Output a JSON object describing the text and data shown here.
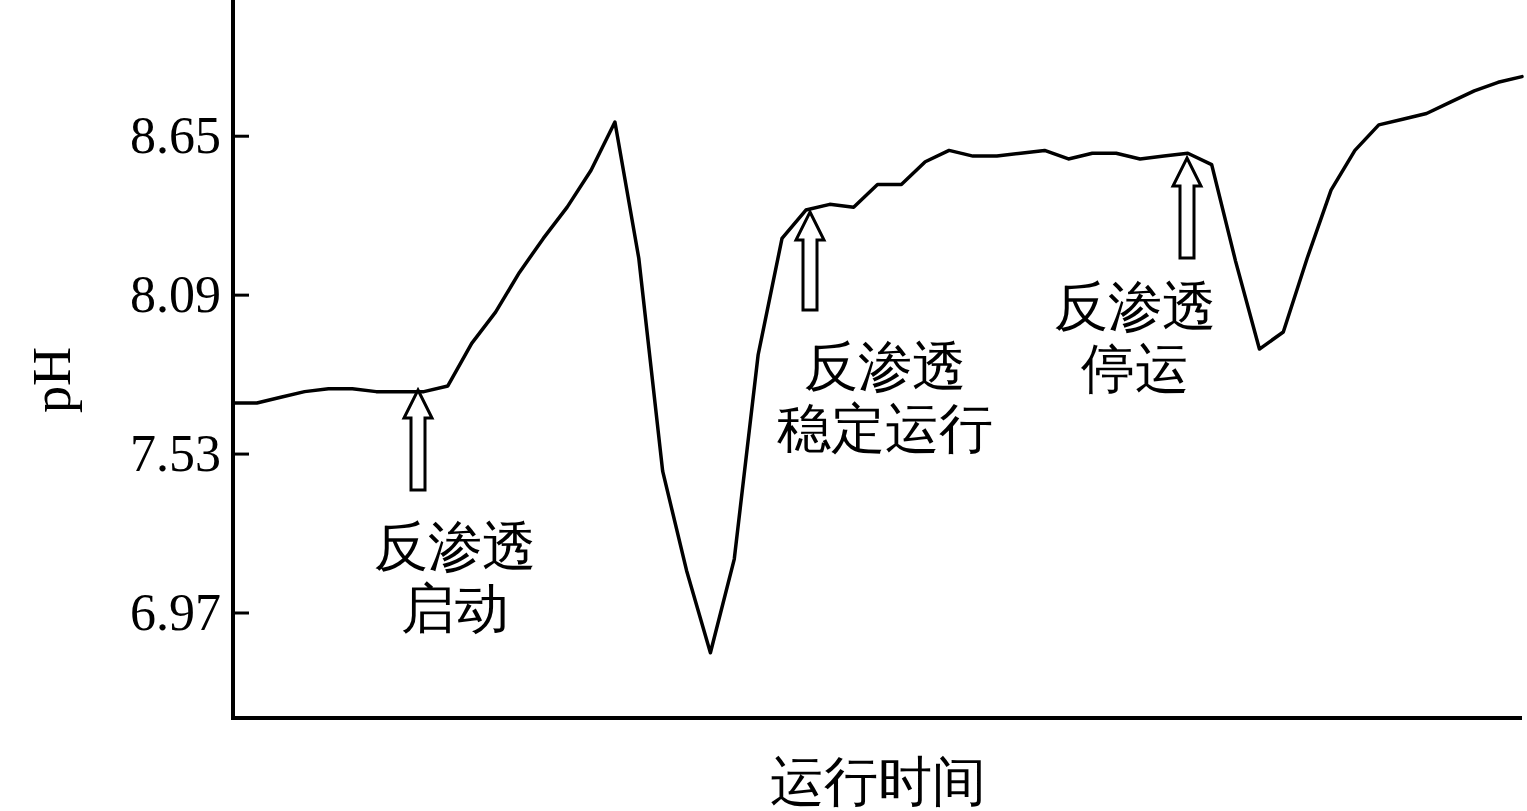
{
  "chart_data": {
    "type": "line",
    "xlabel": "运行时间",
    "ylabel": "pH",
    "ylim": [
      6.6,
      9.13
    ],
    "yticks": [
      6.97,
      7.53,
      8.09,
      8.65
    ],
    "color": "#000000",
    "categories": [
      null,
      null,
      null,
      null,
      null,
      null,
      null,
      null,
      null,
      null,
      null,
      null,
      null,
      null,
      null,
      null,
      null,
      null,
      null,
      null,
      null,
      null,
      null,
      null,
      null,
      null,
      null,
      null,
      null,
      null,
      null,
      null,
      null,
      null,
      null,
      null,
      null,
      null,
      null,
      null,
      null,
      null,
      null,
      null,
      null,
      null,
      null,
      null,
      null,
      null,
      null,
      null,
      null,
      null,
      null
    ],
    "values": [
      7.71,
      7.71,
      7.73,
      7.75,
      7.76,
      7.76,
      7.75,
      7.75,
      7.75,
      7.77,
      7.92,
      8.03,
      8.17,
      8.29,
      8.4,
      8.53,
      8.7,
      8.22,
      7.47,
      7.12,
      6.83,
      7.16,
      7.88,
      8.29,
      8.39,
      8.41,
      8.4,
      8.48,
      8.48,
      8.56,
      8.6,
      8.58,
      8.58,
      8.59,
      8.6,
      8.57,
      8.59,
      8.59,
      8.57,
      8.58,
      8.59,
      8.55,
      8.21,
      7.9,
      7.96,
      8.22,
      8.46,
      8.6,
      8.69,
      8.71,
      8.73,
      8.77,
      8.81,
      8.84,
      8.86
    ],
    "annotations": [
      "反渗透启动",
      "反渗透稳定运行",
      "反渗透停运"
    ]
  }
}
